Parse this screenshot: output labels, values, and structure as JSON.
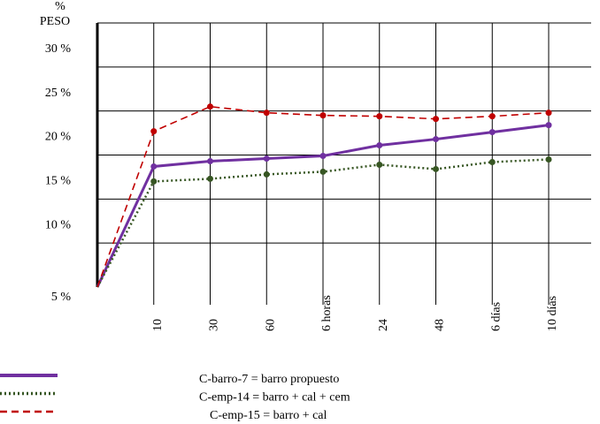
{
  "chart_data": {
    "type": "line",
    "y_unit": "%",
    "y_label": "PESO",
    "categories": [
      null,
      "10",
      "30",
      "60",
      "6 horas",
      "24",
      "48",
      "6 días",
      "10 días"
    ],
    "series": [
      {
        "name": "C-barro-7 = barro propuesto",
        "color": "#7030a0",
        "dash": "solid",
        "values": [
          5,
          18.7,
          19.3,
          19.6,
          19.9,
          21.1,
          21.8,
          22.6,
          23.4
        ]
      },
      {
        "name": "C-emp-14 = barro + cal + cem",
        "color": "#375623",
        "dash": "dotted",
        "values": [
          5,
          17.0,
          17.3,
          17.8,
          18.1,
          18.9,
          18.4,
          19.2,
          19.5
        ]
      },
      {
        "name": "C-emp-15 = barro + cal",
        "color": "#c00000",
        "dash": "dashed",
        "values": [
          5,
          22.7,
          25.5,
          24.8,
          24.5,
          24.4,
          24.1,
          24.4,
          24.8
        ]
      }
    ],
    "ylim": [
      5,
      35
    ],
    "yticks": [
      {
        "value": 5,
        "label": "5 %"
      },
      {
        "value": 10,
        "label": "10 %"
      },
      {
        "value": 15,
        "label": "15 %"
      },
      {
        "value": 20,
        "label": "20 %"
      },
      {
        "value": 25,
        "label": "25 %"
      },
      {
        "value": 30,
        "label": "30 %"
      },
      35
    ],
    "grid": true
  }
}
